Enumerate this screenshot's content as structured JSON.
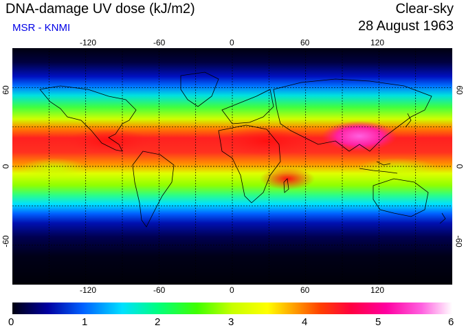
{
  "header": {
    "title": "DNA-damage UV dose (kJ/m2)",
    "subtitle": "MSR - KNMI",
    "sky_condition": "Clear-sky",
    "date": "28 August 1963"
  },
  "map": {
    "longitude_ticks": [
      "-120",
      "-60",
      "0",
      "60",
      "120"
    ],
    "latitude_ticks": [
      "60",
      "0",
      "-60"
    ],
    "gridline_spacing_deg": 30
  },
  "colorbar": {
    "labels": [
      "0",
      "1",
      "2",
      "3",
      "4",
      "5",
      "6"
    ],
    "stops": [
      "#000010",
      "#0000a0",
      "#0060ff",
      "#00e0ff",
      "#00ff80",
      "#40ff00",
      "#c8ff00",
      "#ffff00",
      "#ffb000",
      "#ff4000",
      "#ff0040",
      "#ff00a0",
      "#ff60e0",
      "#ffffff"
    ]
  },
  "colors": {
    "subtitle": "#0000e6",
    "tropics_high": "#ff2020",
    "extreme": "#ff40d0",
    "polar_low": "#000010"
  }
}
